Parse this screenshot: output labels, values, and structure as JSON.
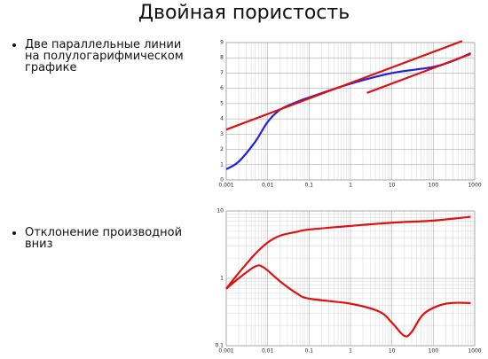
{
  "title": "Двойная пористость",
  "bullets": [
    [
      "Две параллельные линии",
      "на полулогарифмическом",
      "графике"
    ],
    [
      "Отклонение производной",
      "вниз"
    ]
  ],
  "chart_data": [
    {
      "type": "line",
      "xlog": true,
      "ylog": false,
      "grid": true,
      "xlim": [
        0.001,
        1000
      ],
      "xticks": [
        0.001,
        0.01,
        0.1,
        1,
        10,
        100,
        1000
      ],
      "ylim": [
        0,
        9
      ],
      "yticks": [
        0,
        1,
        2,
        3,
        4,
        5,
        6,
        7,
        8,
        9
      ],
      "series": [
        {
          "color": "#2020e0",
          "x": [
            0.001,
            0.002,
            0.005,
            0.01,
            0.02,
            0.05,
            0.1,
            1,
            10,
            100,
            300,
            800
          ],
          "values": [
            0.7,
            1.2,
            2.5,
            3.8,
            4.6,
            5.1,
            5.4,
            6.3,
            7.0,
            7.4,
            7.8,
            8.3
          ]
        },
        {
          "color": "#e01010",
          "x": [
            0.001,
            500
          ],
          "values": [
            3.3,
            9.1
          ]
        },
        {
          "color": "#e01010",
          "x": [
            2.5,
            800
          ],
          "values": [
            5.7,
            8.25
          ]
        }
      ]
    },
    {
      "type": "line",
      "xlog": true,
      "ylog": true,
      "grid": true,
      "xlim": [
        0.001,
        1000
      ],
      "xticks": [
        0.001,
        0.01,
        0.1,
        1,
        10,
        100,
        1000
      ],
      "ylim": [
        0.1,
        10
      ],
      "yticks": [
        0.1,
        1,
        10
      ],
      "series": [
        {
          "color": "#e01010",
          "x": [
            0.001,
            0.002,
            0.005,
            0.01,
            0.02,
            0.05,
            0.1,
            1,
            10,
            100,
            800
          ],
          "values": [
            0.7,
            1.2,
            2.3,
            3.4,
            4.3,
            4.9,
            5.3,
            6.0,
            6.7,
            7.2,
            8.2
          ]
        },
        {
          "color": "#e01010",
          "x": [
            0.001,
            0.002,
            0.005,
            0.008,
            0.02,
            0.05,
            0.1,
            1,
            5,
            10,
            20,
            30,
            60,
            200,
            800
          ],
          "values": [
            0.7,
            1.0,
            1.5,
            1.45,
            0.9,
            0.6,
            0.5,
            0.42,
            0.32,
            0.22,
            0.14,
            0.16,
            0.3,
            0.42,
            0.43
          ]
        }
      ]
    }
  ]
}
